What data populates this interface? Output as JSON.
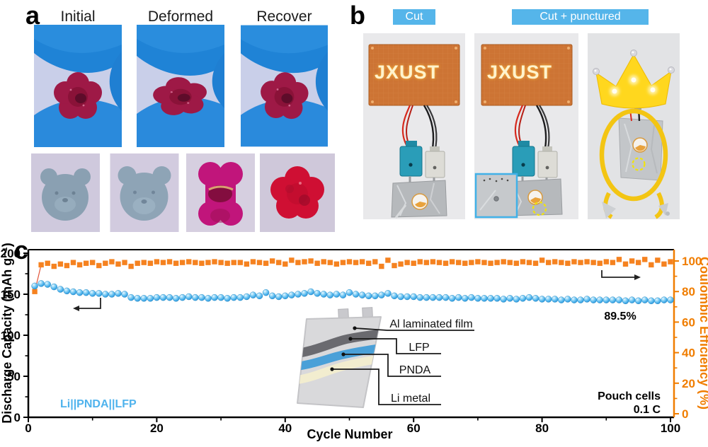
{
  "figure": {
    "panel_a_label": "a",
    "panel_b_label": "b",
    "panel_c_label": "c"
  },
  "panel_a": {
    "captions": [
      "Initial",
      "Deformed",
      "Recover"
    ]
  },
  "panel_b": {
    "badge_cut": "Cut",
    "badge_cut_punctured": "Cut + punctured",
    "pcb_text": "JXUST"
  },
  "colors": {
    "accent_blue": "#55b5ea",
    "marker_blue": "#53b4ec",
    "marker_orange": "#f58220",
    "right_axis_orange": "#f07d00",
    "annotation_blue": "#4fb3ed"
  },
  "chart_data": {
    "type": "scatter",
    "x_label": "Cycle Number",
    "y_left_label": "Discharge Capacity (mAh g⁻¹)",
    "y_right_label": "Coulombic Efficiency (%)",
    "x_range": [
      0,
      100
    ],
    "y_left_range": [
      0,
      200
    ],
    "y_right_range": [
      0,
      100
    ],
    "x_ticks": [
      0,
      20,
      40,
      60,
      80,
      100
    ],
    "y_left_ticks": [
      0,
      50,
      100,
      150,
      200
    ],
    "y_right_ticks": [
      0,
      20,
      40,
      60,
      80,
      100
    ],
    "grid": false,
    "x_start": 1,
    "x_step": 1,
    "series": [
      {
        "name": "Discharge capacity",
        "axis": "left",
        "marker": "circle",
        "color": "#53b4ec",
        "values": [
          160,
          163,
          162,
          159,
          156,
          154,
          153,
          152,
          152,
          151,
          151,
          150,
          150,
          151,
          150,
          146,
          145,
          145,
          145,
          146,
          146,
          146,
          145,
          146,
          147,
          146,
          146,
          145,
          146,
          146,
          145,
          146,
          146,
          147,
          149,
          148,
          152,
          148,
          147,
          148,
          149,
          150,
          151,
          153,
          151,
          150,
          149,
          150,
          149,
          152,
          150,
          149,
          148,
          148,
          149,
          151,
          148,
          147,
          147,
          147,
          146,
          146,
          146,
          146,
          146,
          145,
          146,
          145,
          146,
          145,
          145,
          145,
          145,
          144,
          145,
          144,
          145,
          146,
          145,
          144,
          144,
          144,
          143,
          144,
          143,
          143,
          144,
          143,
          143,
          143,
          143,
          143,
          142,
          143,
          142,
          143,
          142,
          142,
          143,
          143
        ]
      },
      {
        "name": "Coulombic efficiency",
        "axis": "right",
        "marker": "square",
        "color": "#f58220",
        "values": [
          80,
          97.5,
          98.5,
          96.5,
          98,
          97,
          99,
          97.5,
          98.5,
          99,
          97,
          98.5,
          99.5,
          98,
          99,
          96.5,
          98.5,
          99,
          98.5,
          99.5,
          99,
          99.5,
          98.5,
          99,
          99.5,
          99,
          98.5,
          99,
          99.5,
          99,
          98.5,
          99,
          99,
          98,
          99.5,
          99,
          98.5,
          100,
          99,
          98,
          100.5,
          99,
          99.5,
          100,
          98.5,
          99.5,
          99,
          98,
          99,
          99.5,
          99,
          99.5,
          98.5,
          99.5,
          96.5,
          100.5,
          97,
          98,
          99,
          98.5,
          99.5,
          99,
          99.5,
          99,
          98.5,
          99.5,
          99,
          98.5,
          99,
          99.5,
          99,
          98.5,
          99,
          99.5,
          99,
          98.5,
          99.5,
          99,
          98.5,
          100.5,
          99,
          99.5,
          99,
          98.5,
          99.5,
          99,
          99.5,
          99,
          98.5,
          99.5,
          99,
          101,
          98,
          100,
          99,
          101,
          97.5,
          100.5,
          98,
          99.5
        ]
      }
    ],
    "annotations": {
      "cell_label": "Li||PNDA||LFP",
      "retention": "89.5%",
      "note_line1": "Pouch cells",
      "note_line2": "0.1 C"
    },
    "inset_labels": {
      "layer1": "Al laminated film",
      "layer2": "LFP",
      "layer3": "PNDA",
      "layer4": "Li metal"
    }
  }
}
